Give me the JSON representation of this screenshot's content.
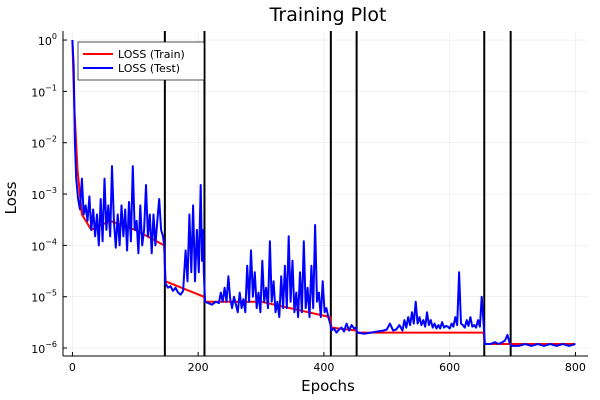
{
  "chart_data": {
    "type": "line",
    "title": "Training Plot",
    "xlabel": "Epochs",
    "ylabel": "Loss",
    "xlim": [
      -15,
      820
    ],
    "ylim": [
      7e-07,
      1.5
    ],
    "yscale": "log",
    "xticks": [
      0,
      200,
      400,
      600,
      800
    ],
    "yticks": [
      {
        "value": 1,
        "base": "10",
        "exp": "0"
      },
      {
        "value": 0.1,
        "base": "10",
        "exp": "−1"
      },
      {
        "value": 0.01,
        "base": "10",
        "exp": "−2"
      },
      {
        "value": 0.001,
        "base": "10",
        "exp": "−3"
      },
      {
        "value": 0.0001,
        "base": "10",
        "exp": "−4"
      },
      {
        "value": 1e-05,
        "base": "10",
        "exp": "−5"
      },
      {
        "value": 1e-06,
        "base": "10",
        "exp": "−6"
      }
    ],
    "grid": true,
    "legend_position": "top-left",
    "vlines": [
      147,
      210,
      411,
      452,
      655,
      697
    ],
    "series": [
      {
        "name": "LOSS (Train)",
        "color": "#ff0000",
        "points": [
          [
            0,
            1.0
          ],
          [
            3,
            0.05
          ],
          [
            8,
            0.003
          ],
          [
            15,
            0.0004
          ],
          [
            30,
            0.0002
          ],
          [
            60,
            0.0003
          ],
          [
            100,
            0.0002
          ],
          [
            146,
            0.0001
          ],
          [
            148,
            2e-05
          ],
          [
            209,
            1e-05
          ],
          [
            211,
            8e-06
          ],
          [
            300,
            8e-06
          ],
          [
            410,
            4e-06
          ],
          [
            412,
            2.5e-06
          ],
          [
            451,
            2.2e-06
          ],
          [
            453,
            2e-06
          ],
          [
            600,
            2e-06
          ],
          [
            654,
            2e-06
          ],
          [
            656,
            1.2e-06
          ],
          [
            800,
            1.2e-06
          ]
        ]
      },
      {
        "name": "LOSS (Test)",
        "color": "#0000ff",
        "points": [
          [
            0,
            1.0
          ],
          [
            2,
            0.3
          ],
          [
            4,
            0.01
          ],
          [
            6,
            0.002
          ],
          [
            9,
            0.0008
          ],
          [
            12,
            0.0005
          ],
          [
            15,
            0.002
          ],
          [
            18,
            0.0004
          ],
          [
            21,
            0.0006
          ],
          [
            24,
            0.0003
          ],
          [
            27,
            0.0009
          ],
          [
            30,
            0.0002
          ],
          [
            33,
            0.0005
          ],
          [
            36,
            0.00015
          ],
          [
            39,
            0.0004
          ],
          [
            42,
            0.0001
          ],
          [
            45,
            0.0008
          ],
          [
            48,
            0.00012
          ],
          [
            51,
            0.002
          ],
          [
            54,
            0.0002
          ],
          [
            57,
            0.0006
          ],
          [
            60,
            0.00015
          ],
          [
            63,
            0.0035
          ],
          [
            66,
            0.0003
          ],
          [
            69,
            9e-05
          ],
          [
            72,
            0.0004
          ],
          [
            75,
            0.0001
          ],
          [
            78,
            0.0006
          ],
          [
            81,
            0.00015
          ],
          [
            84,
            0.0005
          ],
          [
            87,
            8e-05
          ],
          [
            90,
            0.0007
          ],
          [
            93,
            0.00012
          ],
          [
            96,
            0.0035
          ],
          [
            99,
            0.0002
          ],
          [
            102,
            0.0003
          ],
          [
            105,
            7e-05
          ],
          [
            108,
            0.0006
          ],
          [
            111,
            0.0001
          ],
          [
            114,
            0.0002
          ],
          [
            117,
            0.0015
          ],
          [
            120,
            0.00015
          ],
          [
            123,
            0.0004
          ],
          [
            126,
            7e-05
          ],
          [
            129,
            0.0004
          ],
          [
            132,
            0.0001
          ],
          [
            135,
            0.0003
          ],
          [
            138,
            0.0008
          ],
          [
            141,
            0.0002
          ],
          [
            144,
            0.00015
          ],
          [
            146,
            0.0001
          ],
          [
            148,
            1.8e-05
          ],
          [
            152,
            1.5e-05
          ],
          [
            156,
            1.6e-05
          ],
          [
            160,
            1.3e-05
          ],
          [
            164,
            1.5e-05
          ],
          [
            168,
            1.2e-05
          ],
          [
            172,
            1.1e-05
          ],
          [
            176,
            1.3e-05
          ],
          [
            180,
            8e-05
          ],
          [
            183,
            2e-05
          ],
          [
            186,
            0.0004
          ],
          [
            189,
            3e-05
          ],
          [
            192,
            0.0006
          ],
          [
            195,
            2e-05
          ],
          [
            198,
            0.0002
          ],
          [
            201,
            3e-05
          ],
          [
            204,
            0.0015
          ],
          [
            206,
            5e-05
          ],
          [
            208,
            0.0002
          ],
          [
            209,
            3e-05
          ],
          [
            211,
            8e-06
          ],
          [
            216,
            7.5e-06
          ],
          [
            222,
            7e-06
          ],
          [
            228,
            8e-06
          ],
          [
            233,
            7.5e-06
          ],
          [
            236,
            1.2e-05
          ],
          [
            239,
            8e-06
          ],
          [
            242,
            1.5e-05
          ],
          [
            245,
            8e-06
          ],
          [
            248,
            2.5e-05
          ],
          [
            251,
            9e-06
          ],
          [
            254,
            6e-06
          ],
          [
            257,
            1e-05
          ],
          [
            260,
            7e-06
          ],
          [
            263,
            5e-06
          ],
          [
            266,
            1.2e-05
          ],
          [
            269,
            6e-06
          ],
          [
            272,
            9e-06
          ],
          [
            275,
            5e-06
          ],
          [
            278,
            4e-05
          ],
          [
            281,
            8e-06
          ],
          [
            284,
            8e-05
          ],
          [
            287,
            1e-05
          ],
          [
            290,
            3e-05
          ],
          [
            293,
            6e-06
          ],
          [
            296,
            1.2e-05
          ],
          [
            299,
            5e-06
          ],
          [
            302,
            5e-05
          ],
          [
            305,
            8e-06
          ],
          [
            308,
            1.5e-05
          ],
          [
            311,
            6e-06
          ],
          [
            314,
            0.00012
          ],
          [
            317,
            8e-06
          ],
          [
            320,
            2e-05
          ],
          [
            323,
            5e-06
          ],
          [
            326,
            8e-06
          ],
          [
            329,
            4e-06
          ],
          [
            332,
            2.5e-05
          ],
          [
            335,
            6e-06
          ],
          [
            338,
            4e-05
          ],
          [
            341,
            6e-06
          ],
          [
            344,
            0.00015
          ],
          [
            347,
            8e-06
          ],
          [
            350,
            5e-05
          ],
          [
            353,
            5e-06
          ],
          [
            356,
            1.2e-05
          ],
          [
            359,
            4e-06
          ],
          [
            362,
            3e-05
          ],
          [
            365,
            5e-06
          ],
          [
            368,
            0.00012
          ],
          [
            371,
            6e-06
          ],
          [
            374,
            1.5e-05
          ],
          [
            377,
            4e-06
          ],
          [
            380,
            4e-05
          ],
          [
            383,
            6e-06
          ],
          [
            386,
            0.00025
          ],
          [
            389,
            8e-06
          ],
          [
            392,
            1.2e-05
          ],
          [
            395,
            4e-06
          ],
          [
            398,
            2e-05
          ],
          [
            401,
            5e-06
          ],
          [
            404,
            6e-06
          ],
          [
            407,
            4e-06
          ],
          [
            410,
            3e-06
          ],
          [
            412,
            2.2e-06
          ],
          [
            416,
            2.4e-06
          ],
          [
            420,
            2e-06
          ],
          [
            424,
            2.3e-06
          ],
          [
            428,
            2.5e-06
          ],
          [
            432,
            2.1e-06
          ],
          [
            436,
            3e-06
          ],
          [
            440,
            2.2e-06
          ],
          [
            444,
            2.8e-06
          ],
          [
            448,
            2.4e-06
          ],
          [
            451,
            2.5e-06
          ],
          [
            453,
            2e-06
          ],
          [
            465,
            1.9e-06
          ],
          [
            475,
            2e-06
          ],
          [
            485,
            2.1e-06
          ],
          [
            495,
            2.2e-06
          ],
          [
            500,
            2.3e-06
          ],
          [
            505,
            3e-06
          ],
          [
            510,
            2.2e-06
          ],
          [
            515,
            2.3e-06
          ],
          [
            520,
            2.8e-06
          ],
          [
            525,
            2.2e-06
          ],
          [
            528,
            3.5e-06
          ],
          [
            531,
            2.5e-06
          ],
          [
            534,
            4e-06
          ],
          [
            537,
            2.8e-06
          ],
          [
            540,
            5e-06
          ],
          [
            543,
            3e-06
          ],
          [
            546,
            8e-06
          ],
          [
            549,
            3e-06
          ],
          [
            552,
            4e-06
          ],
          [
            555,
            2.8e-06
          ],
          [
            558,
            3.5e-06
          ],
          [
            561,
            2.6e-06
          ],
          [
            564,
            5e-06
          ],
          [
            567,
            2.8e-06
          ],
          [
            570,
            3.5e-06
          ],
          [
            573,
            2.5e-06
          ],
          [
            576,
            3e-06
          ],
          [
            579,
            2.4e-06
          ],
          [
            582,
            2.8e-06
          ],
          [
            585,
            2.4e-06
          ],
          [
            588,
            3.2e-06
          ],
          [
            591,
            2.5e-06
          ],
          [
            594,
            2.7e-06
          ],
          [
            597,
            2.6e-06
          ],
          [
            600,
            2.4e-06
          ],
          [
            603,
            3e-06
          ],
          [
            606,
            2.6e-06
          ],
          [
            609,
            4e-06
          ],
          [
            612,
            2.8e-06
          ],
          [
            615,
            3e-05
          ],
          [
            618,
            3e-06
          ],
          [
            621,
            2.8e-06
          ],
          [
            624,
            2.5e-06
          ],
          [
            627,
            3.5e-06
          ],
          [
            630,
            2.7e-06
          ],
          [
            633,
            4e-06
          ],
          [
            636,
            2.6e-06
          ],
          [
            639,
            2.8e-06
          ],
          [
            642,
            2.5e-06
          ],
          [
            645,
            3.5e-06
          ],
          [
            648,
            2.6e-06
          ],
          [
            651,
            1e-05
          ],
          [
            654,
            3e-06
          ],
          [
            656,
            1.2e-06
          ],
          [
            665,
            1.2e-06
          ],
          [
            672,
            1.3e-06
          ],
          [
            678,
            1.2e-06
          ],
          [
            684,
            1.3e-06
          ],
          [
            688,
            1.4e-06
          ],
          [
            692,
            1.8e-06
          ],
          [
            695,
            1.3e-06
          ],
          [
            696,
            1.2e-06
          ],
          [
            698,
            1.1e-06
          ],
          [
            710,
            1.1e-06
          ],
          [
            720,
            1.2e-06
          ],
          [
            730,
            1.1e-06
          ],
          [
            740,
            1.2e-06
          ],
          [
            750,
            1.1e-06
          ],
          [
            760,
            1.2e-06
          ],
          [
            770,
            1.1e-06
          ],
          [
            780,
            1.2e-06
          ],
          [
            790,
            1.1e-06
          ],
          [
            800,
            1.2e-06
          ]
        ]
      }
    ]
  }
}
